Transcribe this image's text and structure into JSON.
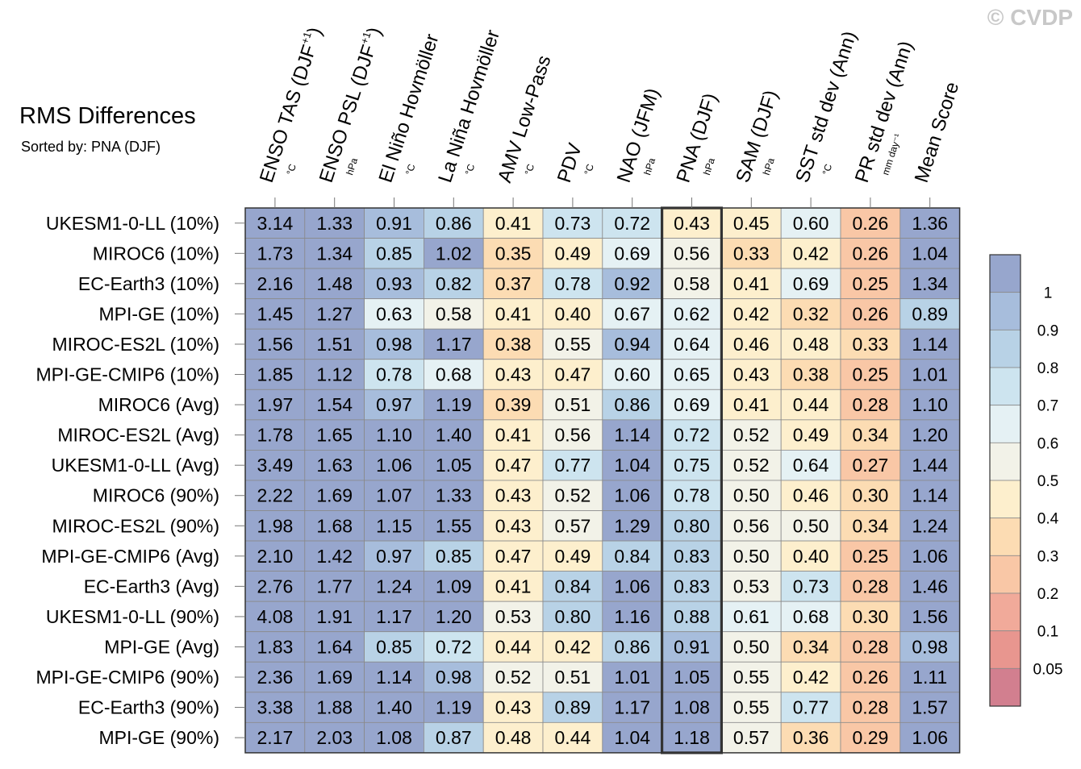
{
  "watermark": "© CVDP",
  "chart_data": {
    "type": "heatmap",
    "title": "RMS Differences",
    "subtitle": "Sorted by: PNA (DJF)",
    "highlight_column": 7,
    "columns": [
      {
        "label": "ENSO TAS (DJF",
        "sup": "+1",
        "close": ")",
        "unit": "°C"
      },
      {
        "label": "ENSO PSL (DJF",
        "sup": "+1",
        "close": ")",
        "unit": "hPa"
      },
      {
        "label": "El Niño Hovmöller",
        "sup": "",
        "close": "",
        "unit": "°C"
      },
      {
        "label": "La Niña Hovmöller",
        "sup": "",
        "close": "",
        "unit": "°C"
      },
      {
        "label": "AMV Low-Pass",
        "sup": "",
        "close": "",
        "unit": "°C"
      },
      {
        "label": "PDV",
        "sup": "",
        "close": "",
        "unit": "°C"
      },
      {
        "label": "NAO (JFM)",
        "sup": "",
        "close": "",
        "unit": "hPa"
      },
      {
        "label": "PNA (DJF)",
        "sup": "",
        "close": "",
        "unit": "hPa"
      },
      {
        "label": "SAM (DJF)",
        "sup": "",
        "close": "",
        "unit": "hPa"
      },
      {
        "label": "SST std dev (Ann)",
        "sup": "",
        "close": "",
        "unit": "°C"
      },
      {
        "label": "PR std dev (Ann)",
        "sup": "",
        "close": "",
        "unit": "mm day⁻¹"
      },
      {
        "label": "Mean Score",
        "sup": "",
        "close": "",
        "unit": ""
      }
    ],
    "rows": [
      "UKESM1-0-LL (10%)",
      "MIROC6 (10%)",
      "EC-Earth3 (10%)",
      "MPI-GE (10%)",
      "MIROC-ES2L (10%)",
      "MPI-GE-CMIP6 (10%)",
      "MIROC6 (Avg)",
      "MIROC-ES2L (Avg)",
      "UKESM1-0-LL (Avg)",
      "MIROC6 (90%)",
      "MIROC-ES2L (90%)",
      "MPI-GE-CMIP6 (Avg)",
      "EC-Earth3 (Avg)",
      "UKESM1-0-LL (90%)",
      "MPI-GE (Avg)",
      "MPI-GE-CMIP6 (90%)",
      "EC-Earth3 (90%)",
      "MPI-GE (90%)"
    ],
    "values": [
      [
        "3.14",
        "1.33",
        "0.91",
        "0.86",
        "0.41",
        "0.73",
        "0.72",
        "0.43",
        "0.45",
        "0.60",
        "0.26",
        "1.36"
      ],
      [
        "1.73",
        "1.34",
        "0.85",
        "1.02",
        "0.35",
        "0.49",
        "0.69",
        "0.56",
        "0.33",
        "0.42",
        "0.26",
        "1.04"
      ],
      [
        "2.16",
        "1.48",
        "0.93",
        "0.82",
        "0.37",
        "0.78",
        "0.92",
        "0.58",
        "0.41",
        "0.69",
        "0.25",
        "1.34"
      ],
      [
        "1.45",
        "1.27",
        "0.63",
        "0.58",
        "0.41",
        "0.40",
        "0.67",
        "0.62",
        "0.42",
        "0.32",
        "0.26",
        "0.89"
      ],
      [
        "1.56",
        "1.51",
        "0.98",
        "1.17",
        "0.38",
        "0.55",
        "0.94",
        "0.64",
        "0.46",
        "0.48",
        "0.33",
        "1.14"
      ],
      [
        "1.85",
        "1.12",
        "0.78",
        "0.68",
        "0.43",
        "0.47",
        "0.60",
        "0.65",
        "0.43",
        "0.38",
        "0.25",
        "1.01"
      ],
      [
        "1.97",
        "1.54",
        "0.97",
        "1.19",
        "0.39",
        "0.51",
        "0.86",
        "0.69",
        "0.41",
        "0.44",
        "0.28",
        "1.10"
      ],
      [
        "1.78",
        "1.65",
        "1.10",
        "1.40",
        "0.41",
        "0.56",
        "1.14",
        "0.72",
        "0.52",
        "0.49",
        "0.34",
        "1.20"
      ],
      [
        "3.49",
        "1.63",
        "1.06",
        "1.05",
        "0.47",
        "0.77",
        "1.04",
        "0.75",
        "0.52",
        "0.64",
        "0.27",
        "1.44"
      ],
      [
        "2.22",
        "1.69",
        "1.07",
        "1.33",
        "0.43",
        "0.52",
        "1.06",
        "0.78",
        "0.50",
        "0.46",
        "0.30",
        "1.14"
      ],
      [
        "1.98",
        "1.68",
        "1.15",
        "1.55",
        "0.43",
        "0.57",
        "1.29",
        "0.80",
        "0.56",
        "0.50",
        "0.34",
        "1.24"
      ],
      [
        "2.10",
        "1.42",
        "0.97",
        "0.85",
        "0.47",
        "0.49",
        "0.84",
        "0.83",
        "0.50",
        "0.40",
        "0.25",
        "1.06"
      ],
      [
        "2.76",
        "1.77",
        "1.24",
        "1.09",
        "0.41",
        "0.84",
        "1.06",
        "0.83",
        "0.53",
        "0.73",
        "0.28",
        "1.46"
      ],
      [
        "4.08",
        "1.91",
        "1.17",
        "1.20",
        "0.53",
        "0.80",
        "1.16",
        "0.88",
        "0.61",
        "0.68",
        "0.30",
        "1.56"
      ],
      [
        "1.83",
        "1.64",
        "0.85",
        "0.72",
        "0.44",
        "0.42",
        "0.86",
        "0.91",
        "0.50",
        "0.34",
        "0.28",
        "0.98"
      ],
      [
        "2.36",
        "1.69",
        "1.14",
        "0.98",
        "0.52",
        "0.51",
        "1.01",
        "1.05",
        "0.55",
        "0.42",
        "0.26",
        "1.11"
      ],
      [
        "3.38",
        "1.88",
        "1.40",
        "1.19",
        "0.43",
        "0.89",
        "1.17",
        "1.08",
        "0.55",
        "0.77",
        "0.28",
        "1.57"
      ],
      [
        "2.17",
        "2.03",
        "1.08",
        "0.87",
        "0.48",
        "0.44",
        "1.04",
        "1.18",
        "0.57",
        "0.36",
        "0.29",
        "1.06"
      ]
    ],
    "colorbar": {
      "levels": [
        "1",
        "0.9",
        "0.8",
        "0.7",
        "0.6",
        "0.5",
        "0.4",
        "0.3",
        "0.2",
        "0.1",
        "0.05"
      ],
      "thresholds": [
        1.0,
        0.9,
        0.8,
        0.7,
        0.6,
        0.5,
        0.4,
        0.3,
        0.2,
        0.1,
        0.05
      ],
      "colors": [
        "#97a6cd",
        "#a7bddc",
        "#b8d2e6",
        "#cde4ef",
        "#e5f1f4",
        "#f2f2e8",
        "#fdefcd",
        "#fcdcb3",
        "#f9c7a6",
        "#f1aa9a",
        "#e8968f",
        "#d27f8f"
      ]
    }
  }
}
